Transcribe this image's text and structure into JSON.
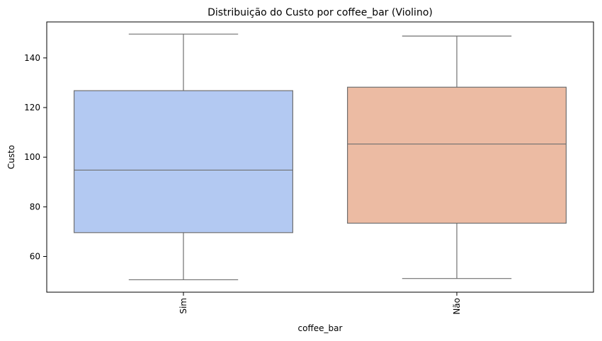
{
  "chart_data": {
    "type": "box",
    "title": "Distribuição do Custo por coffee_bar (Violino)",
    "xlabel": "coffee_bar",
    "ylabel": "Custo",
    "ylim": [
      45.6,
      154.5
    ],
    "yticks": [
      60,
      80,
      100,
      120,
      140
    ],
    "grid": false,
    "legend": false,
    "categories": [
      "Sim",
      "Não"
    ],
    "boxes": [
      {
        "category": "Sim",
        "min": 50.6,
        "q1": 69.6,
        "median": 94.8,
        "q3": 126.8,
        "max": 149.6,
        "color": "#b3c9f2"
      },
      {
        "category": "Não",
        "min": 51.1,
        "q1": 73.4,
        "median": 105.3,
        "q3": 128.2,
        "max": 148.8,
        "color": "#ecbba3"
      }
    ],
    "line_color": "#707070"
  }
}
